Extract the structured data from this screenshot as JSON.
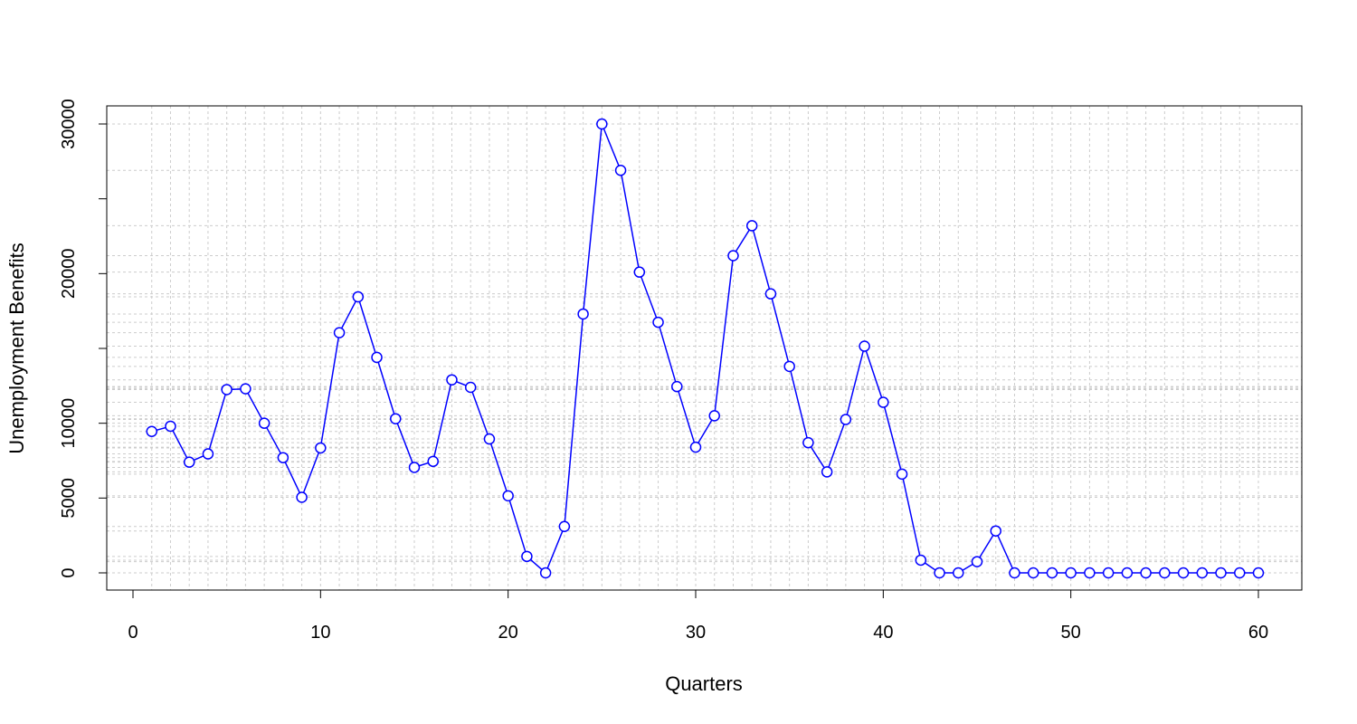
{
  "chart_data": {
    "type": "line",
    "xlabel": "Quarters",
    "ylabel": "Unemployment Benefits",
    "xlim": [
      0,
      60
    ],
    "ylim": [
      0,
      30000
    ],
    "x_ticks": [
      0,
      10,
      20,
      30,
      40,
      50,
      60
    ],
    "y_ticks": [
      0,
      5000,
      10000,
      20000,
      30000
    ],
    "y_minor_ticks": [
      15000,
      25000
    ],
    "grid": true,
    "markers": "open-circle",
    "color": "#0000FF",
    "grid_color": "#cccccc",
    "series": [
      {
        "x": [
          1,
          2,
          3,
          4,
          5,
          6,
          7,
          8,
          9,
          10,
          11,
          12,
          13,
          14,
          15,
          16,
          17,
          18,
          19,
          20,
          21,
          22,
          23,
          24,
          25,
          26,
          27,
          28,
          29,
          30,
          31,
          32,
          33,
          34,
          35,
          36,
          37,
          38,
          39,
          40,
          41,
          42,
          43,
          44,
          45,
          46,
          47,
          48,
          49,
          50,
          51,
          52,
          53,
          54,
          55,
          56,
          57,
          58,
          59,
          60
        ],
        "values": [
          9450,
          9800,
          7400,
          7950,
          12250,
          12300,
          10000,
          7700,
          5050,
          8350,
          16050,
          18450,
          14400,
          10300,
          7050,
          7450,
          12900,
          12400,
          8950,
          5150,
          1100,
          0,
          3100,
          17300,
          30000,
          26900,
          20100,
          16750,
          12450,
          8400,
          10500,
          21200,
          23200,
          18650,
          13800,
          8700,
          6750,
          10250,
          15150,
          11400,
          6600,
          850,
          0,
          0,
          750,
          2800,
          0,
          0,
          0,
          0,
          0,
          0,
          0,
          0,
          0,
          0,
          0,
          0,
          0,
          0
        ]
      }
    ]
  }
}
